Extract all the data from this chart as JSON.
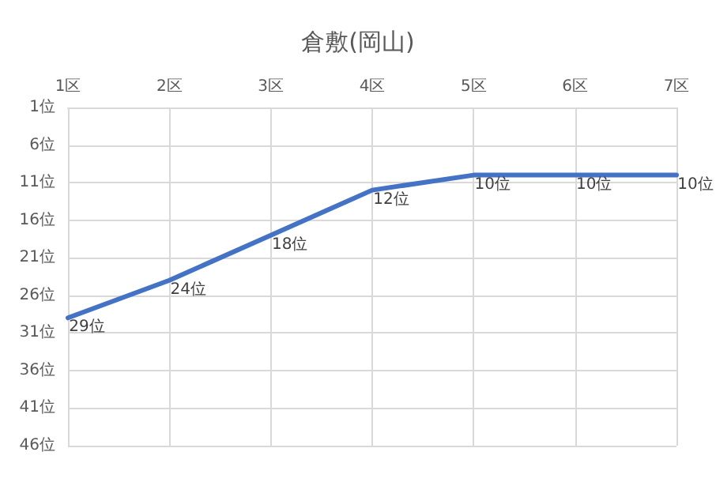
{
  "chart_data": {
    "type": "line",
    "title": "倉敷(岡山)",
    "categories": [
      "1区",
      "2区",
      "3区",
      "4区",
      "5区",
      "6区",
      "7区"
    ],
    "values": [
      29,
      24,
      18,
      12,
      10,
      10,
      10
    ],
    "value_labels": [
      "29位",
      "24位",
      "18位",
      "12位",
      "10位",
      "10位",
      "10位"
    ],
    "color": "#4472c4",
    "ylim": [
      46,
      1
    ],
    "yticks": [
      {
        "value": 1,
        "label": "1位"
      },
      {
        "value": 6,
        "label": "6位"
      },
      {
        "value": 11,
        "label": "11位"
      },
      {
        "value": 16,
        "label": "16位"
      },
      {
        "value": 21,
        "label": "21位"
      },
      {
        "value": 26,
        "label": "26位"
      },
      {
        "value": 31,
        "label": "31位"
      },
      {
        "value": 36,
        "label": "36位"
      },
      {
        "value": 41,
        "label": "41位"
      },
      {
        "value": 46,
        "label": "46位"
      }
    ],
    "grid": true,
    "marker": "none"
  }
}
